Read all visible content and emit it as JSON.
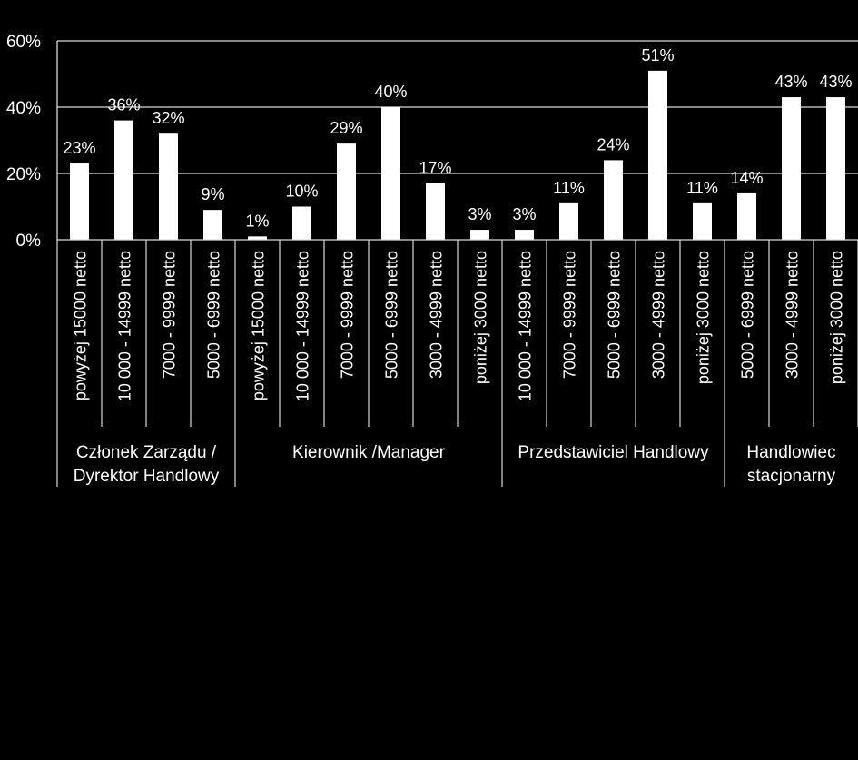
{
  "chart_data": {
    "type": "bar",
    "ylim": [
      0,
      60
    ],
    "yticks": [
      0,
      20,
      40,
      60
    ],
    "ytick_labels": [
      "0%",
      "20%",
      "40%",
      "60%"
    ],
    "grid": true,
    "bar_color": "#ffffff",
    "background": "#000000",
    "text_color": "#ffffff",
    "categories": [
      "powyżej 15000 netto",
      "10 000 - 14999 netto",
      "7000 - 9999 netto",
      "5000 - 6999 netto",
      "powyżej 15000 netto",
      "10 000 - 14999 netto",
      "7000 - 9999 netto",
      "5000 - 6999 netto",
      "3000 - 4999 netto",
      "poniżej 3000 netto",
      "10 000 - 14999 netto",
      "7000 - 9999 netto",
      "5000 - 6999 netto",
      "3000 - 4999 netto",
      "poniżej 3000 netto",
      "5000 - 6999 netto",
      "3000 - 4999 netto",
      "poniżej 3000 netto"
    ],
    "values": [
      23,
      36,
      32,
      9,
      1,
      10,
      29,
      40,
      17,
      3,
      3,
      11,
      24,
      51,
      11,
      14,
      43,
      43
    ],
    "value_labels": [
      "23%",
      "36%",
      "32%",
      "9%",
      "1%",
      "10%",
      "29%",
      "40%",
      "17%",
      "3%",
      "3%",
      "11%",
      "24%",
      "51%",
      "11%",
      "14%",
      "43%",
      "43%"
    ],
    "groups": [
      {
        "label_lines": [
          "Członek Zarządu /",
          "Dyrektor Handlowy"
        ],
        "count": 4
      },
      {
        "label_lines": [
          "Kierownik /Manager"
        ],
        "count": 6
      },
      {
        "label_lines": [
          "Przedstawiciel Handlowy"
        ],
        "count": 5
      },
      {
        "label_lines": [
          "Handlowiec",
          "stacjonarny"
        ],
        "count": 3
      }
    ]
  }
}
